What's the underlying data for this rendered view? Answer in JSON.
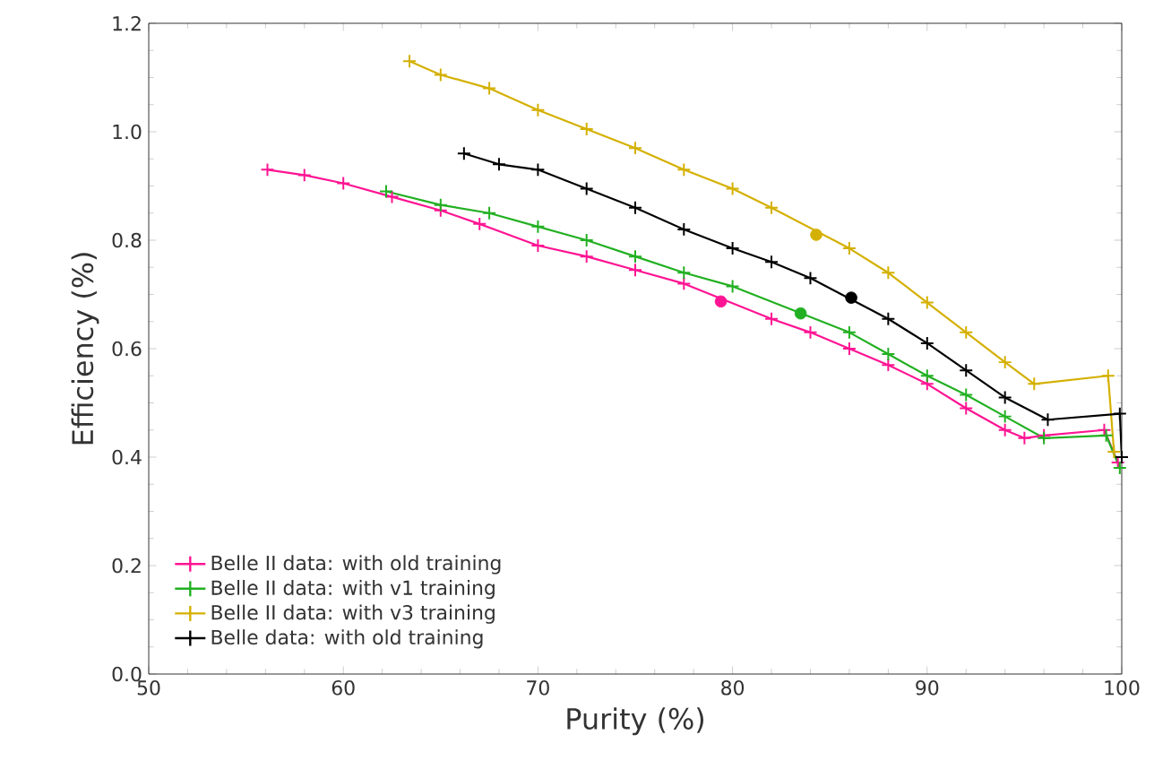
{
  "chart_data": {
    "type": "line",
    "xlabel": "Purity (%)",
    "ylabel": "Efficiency (%)",
    "xlim": [
      50,
      100
    ],
    "xticks": [
      50,
      60,
      70,
      80,
      90,
      100
    ],
    "ylim": [
      0,
      1.2
    ],
    "yticks": [
      {
        "value": 0,
        "label": "0.0"
      },
      {
        "value": 0.2,
        "label": "0.2"
      },
      {
        "value": 0.4,
        "label": "0.4"
      },
      {
        "value": 0.6,
        "label": "0.6"
      },
      {
        "value": 0.8,
        "label": "0.8"
      },
      {
        "value": 1.0,
        "label": "1.0"
      },
      {
        "value": 1.2,
        "label": "1.2"
      }
    ],
    "grid": false,
    "legend": "bottom left",
    "line_style": "solid",
    "series": [
      {
        "name": "Belle II data: with old training",
        "marker": "cross",
        "color": "#ff1493",
        "x": [
          56.1,
          58,
          60,
          62.5,
          65,
          67,
          70,
          72.5,
          75,
          77.5,
          82,
          84,
          86,
          88,
          90,
          92,
          94,
          95,
          96,
          99.1,
          99.8
        ],
        "values": [
          0.93,
          0.92,
          0.905,
          0.88,
          0.855,
          0.83,
          0.79,
          0.77,
          0.745,
          0.72,
          0.655,
          0.63,
          0.6,
          0.57,
          0.535,
          0.49,
          0.45,
          0.435,
          0.44,
          0.45,
          0.39
        ]
      },
      {
        "name": "Belle II data: with v1 training",
        "marker": "cross",
        "color": "#22b022",
        "x": [
          62.2,
          65,
          67.5,
          70,
          72.5,
          75,
          77.5,
          80,
          86,
          88,
          90,
          92,
          94,
          96,
          99.2,
          99.9
        ],
        "values": [
          0.89,
          0.865,
          0.85,
          0.825,
          0.8,
          0.77,
          0.74,
          0.715,
          0.63,
          0.59,
          0.55,
          0.515,
          0.475,
          0.435,
          0.44,
          0.38
        ]
      },
      {
        "name": "Belle II data: with v3 training",
        "marker": "cross",
        "color": "#d4b000",
        "x": [
          63.4,
          65,
          67.5,
          70,
          72.5,
          75,
          77.5,
          80,
          82,
          86,
          88,
          90,
          92,
          94,
          95.5,
          99.3,
          99.6
        ],
        "values": [
          1.13,
          1.105,
          1.08,
          1.04,
          1.005,
          0.97,
          0.93,
          0.895,
          0.86,
          0.785,
          0.74,
          0.685,
          0.63,
          0.575,
          0.535,
          0.55,
          0.41
        ]
      },
      {
        "name": "Belle data: with old training",
        "marker": "cross",
        "color": "#000000",
        "x": [
          66.2,
          68,
          70,
          72.5,
          75,
          77.5,
          80,
          82,
          84,
          88,
          90,
          92,
          94,
          96.2,
          99.9,
          100
        ],
        "values": [
          0.96,
          0.94,
          0.93,
          0.895,
          0.86,
          0.82,
          0.785,
          0.76,
          0.73,
          0.655,
          0.61,
          0.56,
          0.51,
          0.469,
          0.48,
          0.4
        ]
      },
      {
        "type": "scatter",
        "marker": "circle",
        "color": "#ff1493",
        "x": [
          79.4
        ],
        "values": [
          0.687
        ]
      },
      {
        "type": "scatter",
        "marker": "circle",
        "color": "#22b022",
        "x": [
          83.5
        ],
        "values": [
          0.665
        ]
      },
      {
        "type": "scatter",
        "marker": "circle",
        "color": "#d4b000",
        "x": [
          84.3
        ],
        "values": [
          0.81
        ]
      },
      {
        "type": "scatter",
        "marker": "circle",
        "color": "#000000",
        "x": [
          86.1
        ],
        "values": [
          0.694
        ]
      }
    ]
  }
}
